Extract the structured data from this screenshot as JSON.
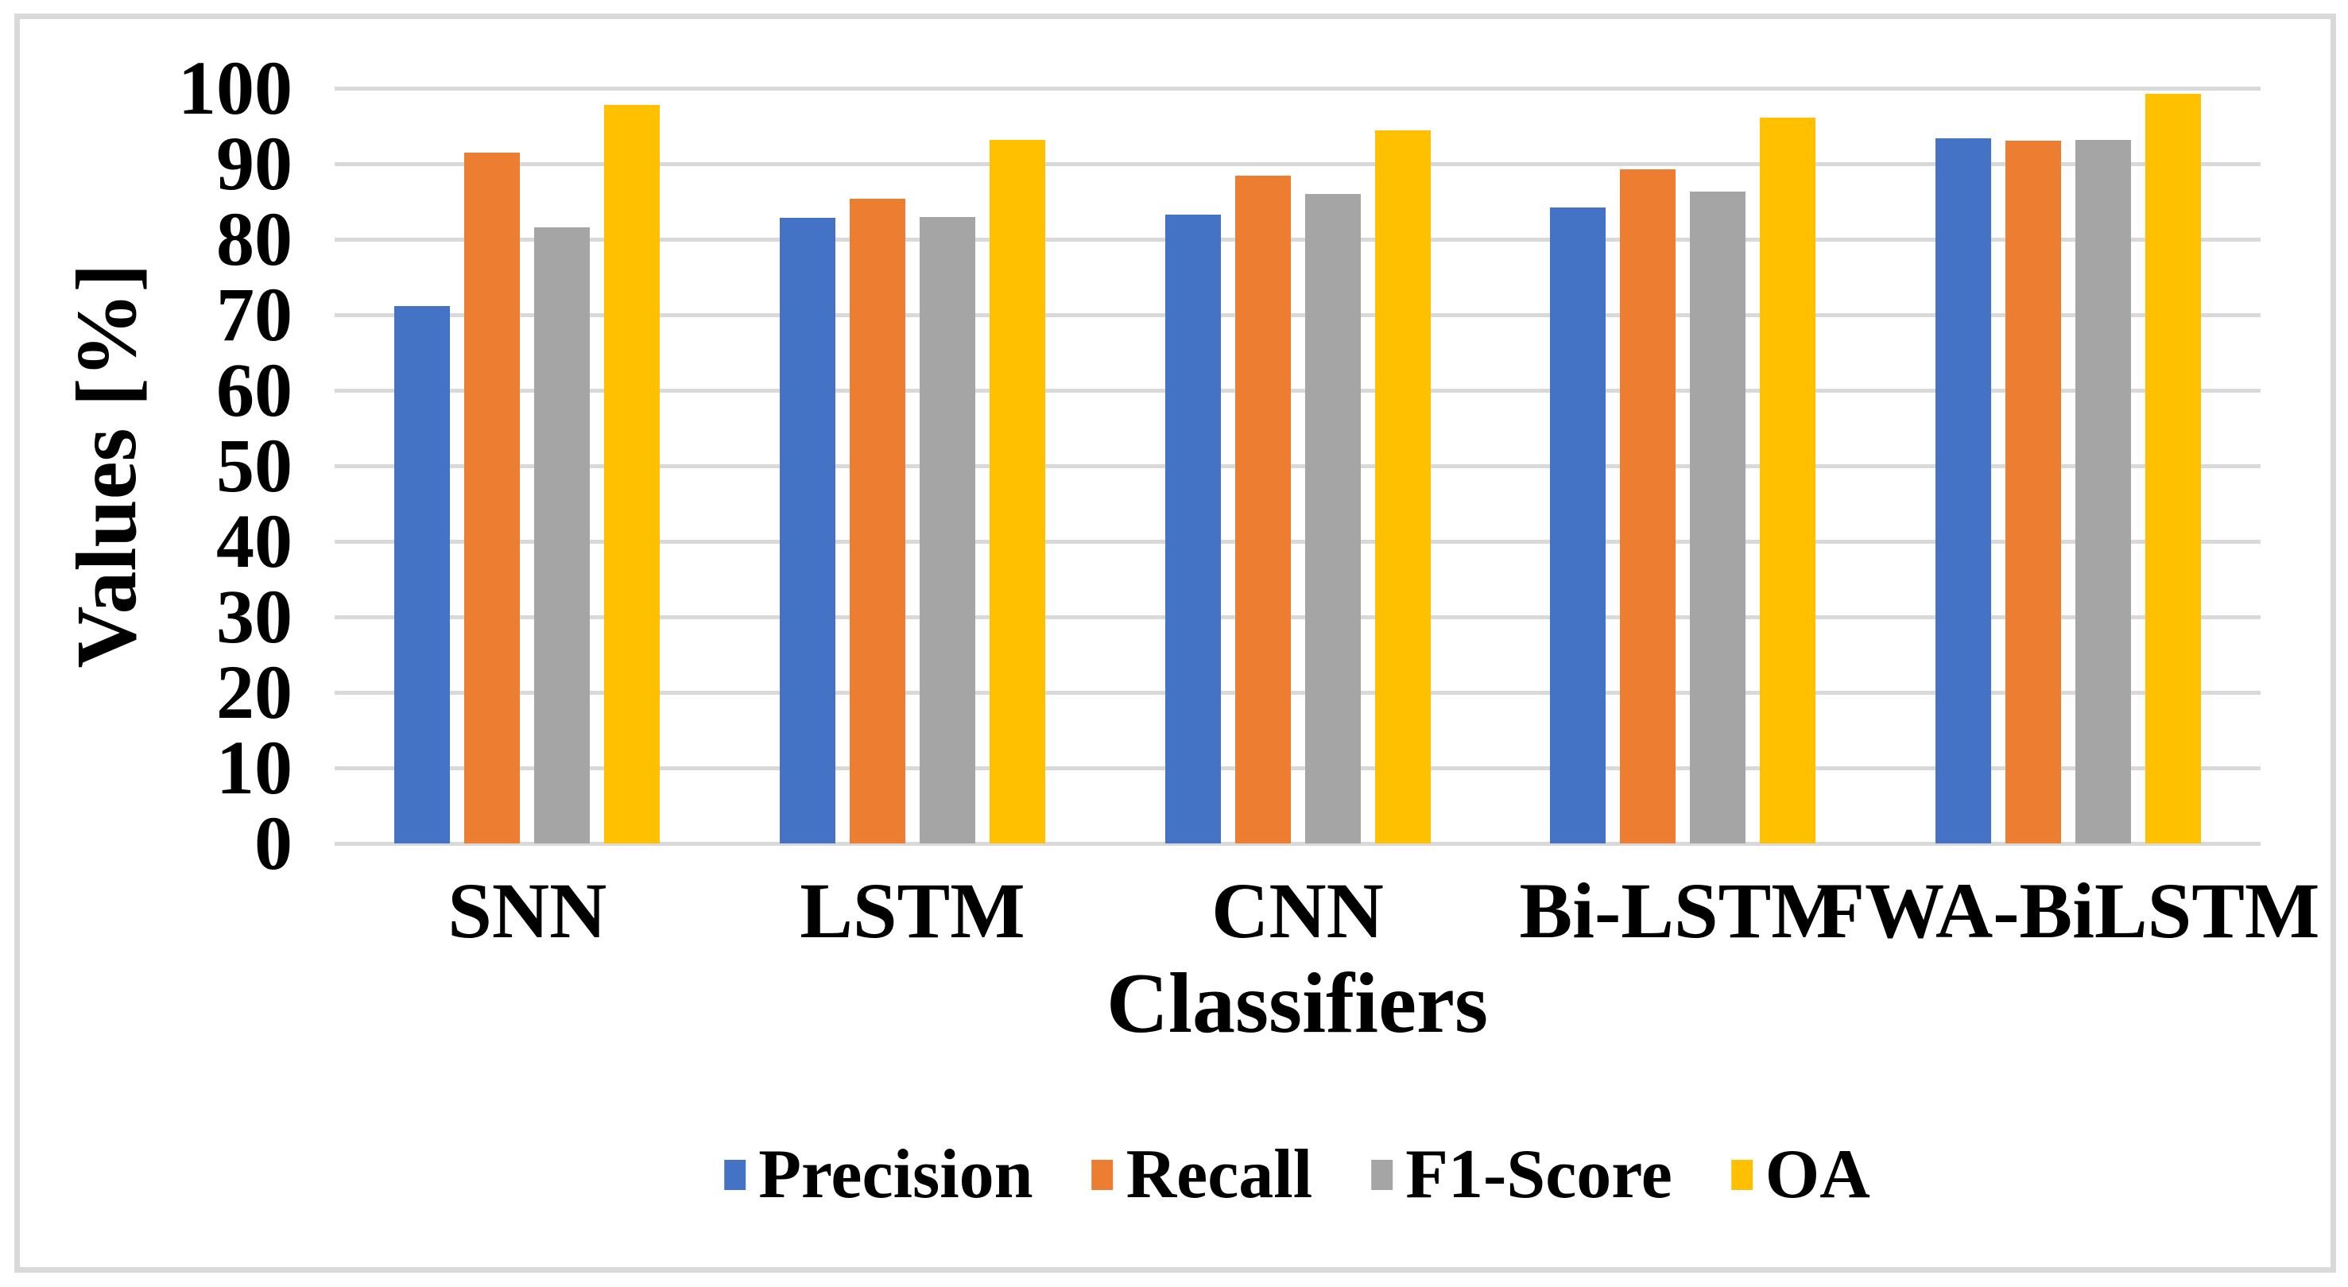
{
  "chart_data": {
    "type": "bar",
    "title": "",
    "categories": [
      "SNN",
      "LSTM",
      "CNN",
      "Bi-LSTM",
      "FWA-BiLSTM"
    ],
    "series": [
      {
        "name": "Precision",
        "color": "#4472C4",
        "values": [
          71.2,
          82.8,
          83.3,
          84.2,
          93.4
        ]
      },
      {
        "name": "Recall",
        "color": "#ED7D31",
        "values": [
          91.5,
          85.4,
          88.4,
          89.3,
          93.1
        ]
      },
      {
        "name": "F1-Score",
        "color": "#A5A5A5",
        "values": [
          81.6,
          83.0,
          86.0,
          86.3,
          93.2
        ]
      },
      {
        "name": "OA",
        "color": "#FFC000",
        "values": [
          97.8,
          93.2,
          94.4,
          96.1,
          99.3
        ]
      }
    ],
    "xlabel": "Classifiers",
    "ylabel": "Values [%]",
    "ylim": [
      0,
      100
    ],
    "ytick_step": 10,
    "ytick_labels": [
      "0",
      "10",
      "20",
      "30",
      "40",
      "50",
      "60",
      "70",
      "80",
      "90",
      "100"
    ],
    "grid": true,
    "gridline_color": "#D9D9D9",
    "border_color": "#D9D9D9",
    "legend_position": "bottom"
  }
}
